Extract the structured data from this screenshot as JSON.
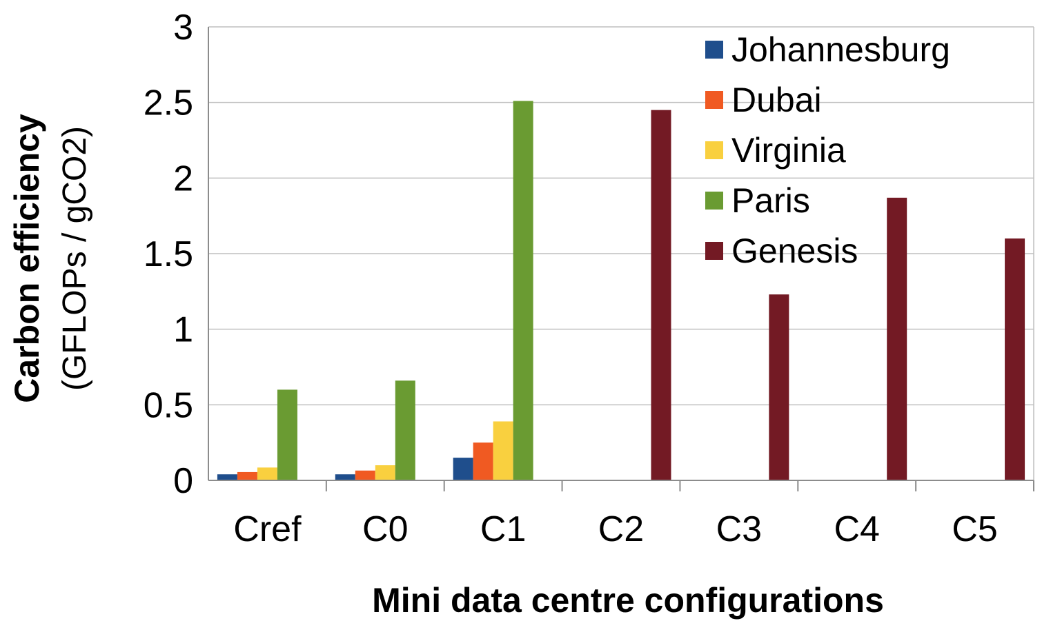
{
  "chart_data": {
    "type": "bar",
    "title": "",
    "xlabel": "Mini data centre configurations",
    "ylabel": "Carbon efficiency",
    "ylabel_sub": "(GFLOPs / gCO2)",
    "ylim": [
      0,
      3
    ],
    "yticks": [
      "0",
      "0.5",
      "1",
      "1.5",
      "2",
      "2.5",
      "3"
    ],
    "grid": true,
    "legend_position": "top-right",
    "categories": [
      "Cref",
      "C0",
      "C1",
      "C2",
      "C3",
      "C4",
      "C5"
    ],
    "series": [
      {
        "name": "Johannesburg",
        "color": "#1f4e8c",
        "values": [
          0.04,
          0.04,
          0.15,
          0,
          0,
          0,
          0
        ]
      },
      {
        "name": "Dubai",
        "color": "#f05a22",
        "values": [
          0.055,
          0.065,
          0.25,
          0,
          0,
          0,
          0
        ]
      },
      {
        "name": "Virginia",
        "color": "#f9d03f",
        "values": [
          0.085,
          0.1,
          0.39,
          0,
          0,
          0,
          0
        ]
      },
      {
        "name": "Paris",
        "color": "#6a9b32",
        "values": [
          0.6,
          0.66,
          2.51,
          0,
          0,
          0,
          0
        ]
      },
      {
        "name": "Genesis",
        "color": "#731a24",
        "values": [
          0,
          0,
          0,
          2.45,
          1.23,
          1.87,
          1.6
        ]
      }
    ]
  }
}
